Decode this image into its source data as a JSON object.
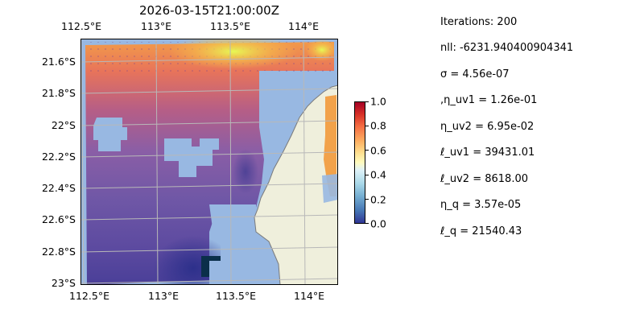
{
  "figure": {
    "title": "2026-03-15T21:00:00Z",
    "axes": {
      "top_ticks": [
        "112.5°E",
        "113°E",
        "113.5°E",
        "114°E"
      ],
      "bottom_ticks": [
        "112.5°E",
        "113°E",
        "113.5°E",
        "114°E"
      ],
      "left_ticks": [
        "21.6°S",
        "21.8°S",
        "22°S",
        "22.2°S",
        "22.4°S",
        "22.6°S",
        "22.8°S",
        "23°S"
      ]
    },
    "colorbar": {
      "ticks": [
        "0.0",
        "0.2",
        "0.4",
        "0.6",
        "0.8",
        "1.0"
      ],
      "range": [
        0.0,
        1.0
      ]
    },
    "colors": {
      "ocean": "#98b8e2",
      "land": "#efefdc",
      "coast": "#7a7a7a",
      "grid": "#b8b8b8"
    }
  },
  "params": [
    "Iterations: 200",
    "nll: -6231.940400904341",
    "σ = 4.56e-07",
    ",η_uv1 = 1.26e-01",
    "η_uv2 = 6.95e-02",
    "ℓ_uv1 = 39431.01",
    "ℓ_uv2 = 8618.00",
    "η_q = 3.57e-05",
    "ℓ_q = 21540.43"
  ]
}
